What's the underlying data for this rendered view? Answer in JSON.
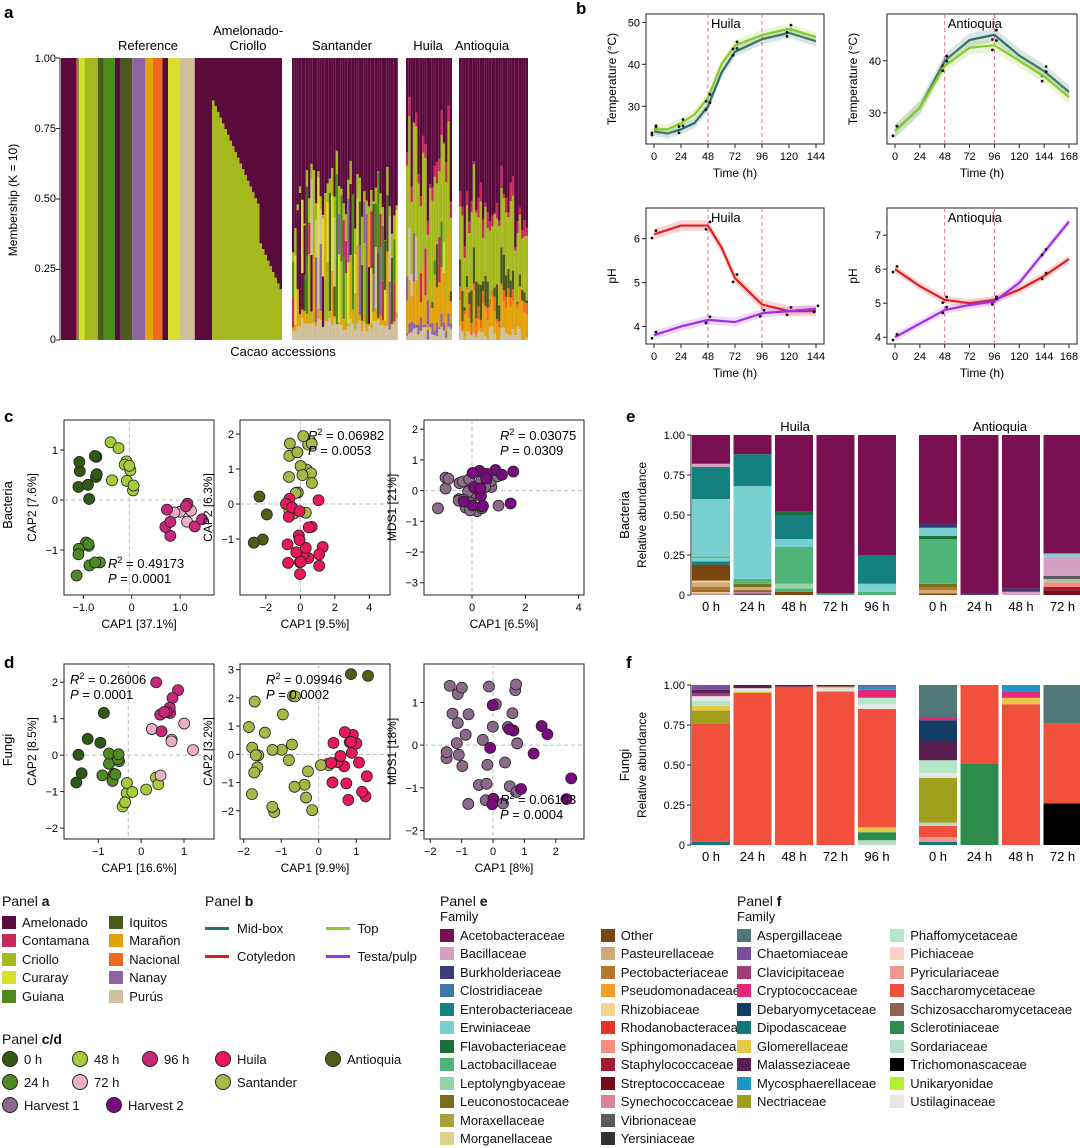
{
  "panel_labels": {
    "a": "a",
    "b": "b",
    "c": "c",
    "d": "d",
    "e": "e",
    "f": "f"
  },
  "colors": {
    "amelonado": "#5a0a3c",
    "contamana": "#c8285a",
    "criollo": "#a5b81e",
    "curaray": "#d8e02a",
    "guiana": "#4d8a1e",
    "iquitos": "#4a5a1a",
    "maranon": "#e3a008",
    "nacional": "#f06a1e",
    "nanay": "#8c64a0",
    "purus": "#cfbf9a",
    "midbox": "#2f6b6b",
    "cotyledon": "#e02020",
    "top": "#8ac928",
    "testa": "#a030e0",
    "h0": "#2f5a14",
    "h24": "#4e8a22",
    "h48": "#a6cc3a",
    "h72": "#eab0c8",
    "h96": "#c8287a",
    "huila": "#e8185a",
    "santander": "#a8b848",
    "antioquia": "#4e6018",
    "harvest1": "#8c6a8c",
    "harvest2": "#7a0a80"
  },
  "panel_a": {
    "ylabel": "Membership (K = 10)",
    "xlabel": "Cacao accessions",
    "yticks": [
      "0",
      "0.25",
      "0.50",
      "0.75",
      "1.00"
    ],
    "groups": [
      "Reference",
      "Amelonado-\nCriollo",
      "Santander",
      "Huila",
      "Antioquia"
    ]
  },
  "panel_b": {
    "xticks_huila": [
      "0",
      "24",
      "48",
      "72",
      "96",
      "120",
      "144"
    ],
    "xticks_antioquia": [
      "0",
      "24",
      "48",
      "72",
      "96",
      "120",
      "144",
      "168"
    ],
    "temp_yticks_huila": [
      "30",
      "40",
      "50"
    ],
    "temp_yticks_antioquia": [
      "30",
      "40"
    ],
    "ph_yticks_huila": [
      "4",
      "5",
      "6"
    ],
    "ph_yticks_antioquia": [
      "4",
      "5",
      "6",
      "7"
    ],
    "xlabel": "Time (h)",
    "temp_ylabel": "Temperature (°C)",
    "ph_ylabel": "pH",
    "huila": "Huila",
    "antioquia": "Antioquia"
  },
  "panel_c": {
    "row_label": "Bacteria",
    "plot1": {
      "xlabel": "CAP1 [37.1%]",
      "ylabel": "CAP2 [7.6%]",
      "stat1": "R",
      "stat1b": "2",
      "stat1c": " = 0.49173",
      "stat2": "P",
      "stat2b": " = 0.0001",
      "xticks": [
        "−1.0",
        "0",
        "1.0"
      ],
      "yticks": [
        "−1",
        "0",
        "1"
      ]
    },
    "plot2": {
      "xlabel": "CAP1 [9.5%]",
      "ylabel": "CAP2 [6.3%]",
      "stat1": "R",
      "stat1b": "2",
      "stat1c": " = 0.06982",
      "stat2": "P",
      "stat2b": " = 0.0053",
      "xticks": [
        "−2",
        "0",
        "2",
        "4"
      ],
      "yticks": [
        "−1",
        "0",
        "1",
        "2"
      ]
    },
    "plot3": {
      "xlabel": "CAP1 [6.5%]",
      "ylabel": "MDS1 [21%]",
      "stat1": "R",
      "stat1b": "2",
      "stat1c": " = 0.03075",
      "stat2": "P",
      "stat2b": " = 0.0309",
      "xticks": [
        "0",
        "2",
        "4"
      ],
      "yticks": [
        "−3",
        "−2",
        "−1",
        "0",
        "1",
        "2"
      ]
    }
  },
  "panel_d": {
    "row_label": "Fungi",
    "plot1": {
      "xlabel": "CAP1 [16.6%]",
      "ylabel": "CAP2 [8.5%]",
      "stat1": "R",
      "stat1b": "2",
      "stat1c": " = 0.26006",
      "stat2": "P",
      "stat2b": " = 0.0001",
      "xticks": [
        "−1",
        "0",
        "1"
      ],
      "yticks": [
        "−2",
        "−1",
        "0",
        "1",
        "2"
      ]
    },
    "plot2": {
      "xlabel": "CAP1 [9.9%]",
      "ylabel": "CAP2 [3.2%]",
      "stat1": "R",
      "stat1b": "2",
      "stat1c": " = 0.09946",
      "stat2": "P",
      "stat2b": " = 0.0002",
      "xticks": [
        "−2",
        "−1",
        "0",
        "1"
      ],
      "yticks": [
        "−2",
        "−1",
        "0",
        "1",
        "2",
        "3"
      ]
    },
    "plot3": {
      "xlabel": "CAP1 [8%]",
      "ylabel": "MDS1 [18%]",
      "stat1": "R",
      "stat1b": "2",
      "stat1c": " = 0.06103",
      "stat2": "P",
      "stat2b": " = 0.0004",
      "xticks": [
        "−2",
        "−1",
        "0",
        "1",
        "2"
      ],
      "yticks": [
        "−2",
        "−1",
        "0",
        "1"
      ]
    }
  },
  "panel_e": {
    "ylabel": "Relative abundance",
    "row_label": "Bacteria",
    "yticks": [
      "0",
      "0.25",
      "0.50",
      "0.75",
      "1.00"
    ],
    "huila": "Huila",
    "antioquia": "Antioquia",
    "huila_x": [
      "0 h",
      "24 h",
      "48 h",
      "72 h",
      "96 h"
    ],
    "antioquia_x": [
      "0 h",
      "24 h",
      "48 h",
      "72 h"
    ]
  },
  "panel_f": {
    "ylabel": "Relative abundance",
    "row_label": "Fungi",
    "yticks": [
      "0",
      "0.25",
      "0.50",
      "0.75",
      "1.00"
    ],
    "huila_x": [
      "0 h",
      "24 h",
      "48 h",
      "72 h",
      "96 h"
    ],
    "antioquia_x": [
      "0 h",
      "24 h",
      "48 h",
      "72 h"
    ]
  },
  "legend_a": {
    "title": "Panel ",
    "title_b": "a",
    "col1": [
      "Amelonado",
      "Contamana",
      "Criollo",
      "Curaray",
      "Guiana"
    ],
    "col2": [
      "Iquitos",
      "Marañon",
      "Nacional",
      "Nanay",
      "Purús"
    ]
  },
  "legend_b": {
    "title": "Panel ",
    "title_b": "b",
    "items": [
      "Mid-box",
      "Cotyledon",
      "Top",
      "Testa/pulp"
    ]
  },
  "legend_cd": {
    "title": "Panel ",
    "title_b": "c/d",
    "items": [
      "0 h",
      "48 h",
      "96 h",
      "Huila",
      "Antioquia",
      "24 h",
      "72 h",
      "Santander",
      "Harvest 1",
      "Harvest 2"
    ]
  },
  "legend_e": {
    "title": "Panel ",
    "title_b": "e",
    "family": "Family",
    "col1": [
      "Acetobacteraceae",
      "Bacillaceae",
      "Burkholderiaceae",
      "Clostridiaceae",
      "Enterobacteriaceae",
      "Erwiniaceae",
      "Flavobacteriaceae",
      "Lactobacillaceae",
      "Leptolyngbyaceae",
      "Leuconostocaceae",
      "Moraxellaceae",
      "Morganellaceae"
    ],
    "col2": [
      "Other",
      "Pasteurellaceae",
      "Pectobacteriaceae",
      "Pseudomonadaceae",
      "Rhizobiaceae",
      "Rhodanobacteraceae",
      "Sphingomonadaceae",
      "Staphylococcaceae",
      "Streptococcaceae",
      "Synechococcaceae",
      "Vibrionaceae",
      "Yersiniaceae"
    ],
    "col1_colors": [
      "#7a0f52",
      "#d4a0c4",
      "#3c3c78",
      "#3c78a8",
      "#148080",
      "#78d0d0",
      "#1e6e3c",
      "#50b478",
      "#96d2a8",
      "#786e1e",
      "#aaa03c",
      "#dcd28c"
    ],
    "col2_colors": [
      "#7a4610",
      "#d2aa78",
      "#b47828",
      "#f0a028",
      "#fad28c",
      "#e63228",
      "#fa8c82",
      "#a01e32",
      "#780a1e",
      "#dc8296",
      "#5a5a5a",
      "#323232"
    ]
  },
  "legend_f": {
    "title": "Panel ",
    "title_b": "f",
    "family": "Family",
    "col1": [
      "Aspergillaceae",
      "Chaetomiaceae",
      "Clavicipitaceae",
      "Cryptococcaceae",
      "Debaryomycetaceae",
      "Dipodascaceae",
      "Glomerellaceae",
      "Malasseziaceae",
      "Mycosphaerellaceae",
      "Nectriaceae"
    ],
    "col2": [
      "Phaffomycetaceae",
      "Pichiaceae",
      "Pyriculariaceae",
      "Saccharomycetaceae",
      "Schizosaccharomycetaceae",
      "Sclerotiniaceae",
      "Sordariaceae",
      "Trichomonascaceae",
      "Unikaryonidae",
      "Ustilaginaceae"
    ],
    "col1_colors": [
      "#507878",
      "#7850a0",
      "#a03c78",
      "#e6287a",
      "#143c64",
      "#14787a",
      "#e6c846",
      "#5a1e50",
      "#1e96c8",
      "#a0a01e"
    ],
    "col2_colors": [
      "#b4e6c8",
      "#fad2c8",
      "#f0968c",
      "#f0503c",
      "#8c6450",
      "#2d8c4b",
      "#b4dcc8",
      "#000000",
      "#b4f032",
      "#e6e6e6"
    ]
  }
}
